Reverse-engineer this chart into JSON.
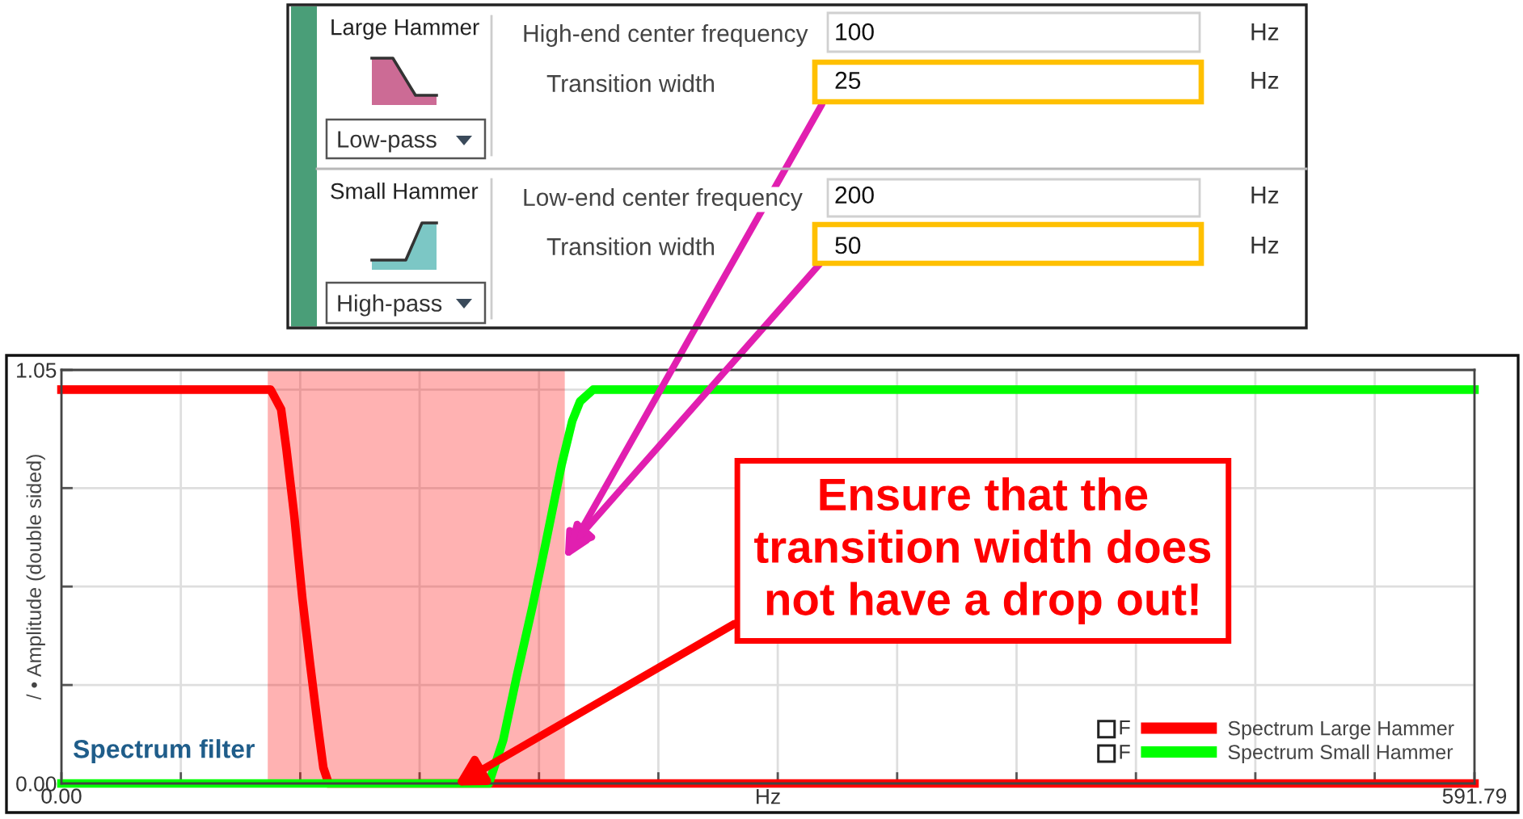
{
  "chart_data": {
    "type": "line",
    "xlabel": "Hz",
    "ylabel": "/ • Amplitude (double sided)",
    "xlim": [
      0,
      591.79
    ],
    "ylim": [
      0,
      1.05
    ],
    "xticks": [
      {
        "value": 0,
        "label": "0.00"
      },
      {
        "value": 50,
        "label": null
      },
      {
        "value": 100,
        "label": null
      },
      {
        "value": 150,
        "label": null
      },
      {
        "value": 200,
        "label": null
      },
      {
        "value": 250,
        "label": null
      },
      {
        "value": 300,
        "label": null
      },
      {
        "value": 350,
        "label": null
      },
      {
        "value": 400,
        "label": null
      },
      {
        "value": 450,
        "label": null
      },
      {
        "value": 500,
        "label": null
      },
      {
        "value": 550,
        "label": null
      },
      {
        "value": 591.79,
        "label": "591.79"
      }
    ],
    "yticks": [
      {
        "value": 0,
        "label": "0.00"
      },
      {
        "value": 0.25,
        "label": null
      },
      {
        "value": 0.5,
        "label": null
      },
      {
        "value": 0.75,
        "label": null
      },
      {
        "value": 1.0,
        "label": null
      },
      {
        "value": 1.05,
        "label": "1.05"
      }
    ],
    "grid": true,
    "legend": "bottom right",
    "line_style": "solid",
    "bands": [
      {
        "axis": "x",
        "from": 86.4,
        "to": 210.8,
        "color": "#ff0000"
      }
    ],
    "series": [
      {
        "name": "Spectrum Large Hammer",
        "color": "#ff0000",
        "x": [
          0,
          87.6,
          92.0,
          94.2,
          97.5,
          100.9,
          104.2,
          107.5,
          109.7,
          111.9,
          591.79
        ],
        "values": [
          1,
          1,
          0.95,
          0.85,
          0.68,
          0.47,
          0.3,
          0.14,
          0.04,
          0,
          0
        ]
      },
      {
        "name": "Spectrum Small Hammer",
        "color": "#00ff00",
        "x": [
          0,
          179.0,
          185.0,
          190.6,
          197.3,
          202.8,
          209.5,
          213.9,
          217.2,
          222.7,
          591.79
        ],
        "values": [
          0,
          0,
          0.11,
          0.27,
          0.45,
          0.61,
          0.81,
          0.92,
          0.97,
          1,
          1
        ]
      }
    ],
    "annotations": [
      "Large Hammer",
      "Low-pass",
      "High-end center frequency",
      "100",
      "Hz",
      "Transition width",
      {
        "text": "25",
        "x": 210.8,
        "y": 0.57
      },
      "Hz",
      "Small Hammer",
      "High-pass",
      "Low-end center frequency",
      "200",
      "Hz",
      "Transition width",
      {
        "text": "50",
        "x": 211.5,
        "y": 0.59
      },
      "Hz",
      "Spectrum filter",
      {
        "text": "Ensure that the\ntransition width does\nnot have a drop out!",
        "x": 166.2,
        "y": 0
      },
      "F",
      "F"
    ]
  }
}
